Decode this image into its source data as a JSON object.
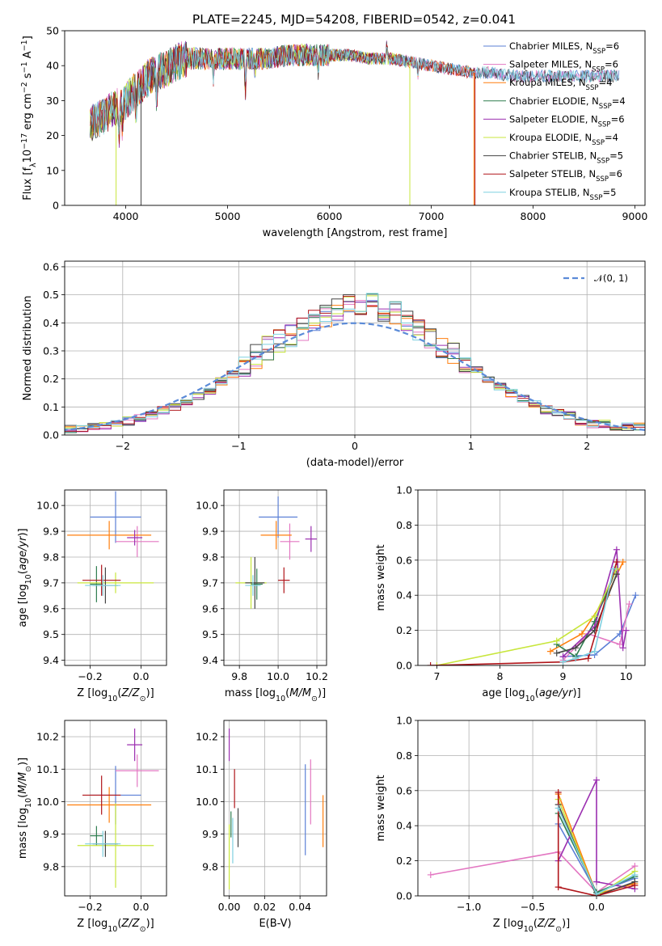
{
  "figure_title": "PLATE=2245, MJD=54208, FIBERID=0542, z=0.041",
  "colors": {
    "chab_miles": "#5b7fd6",
    "salp_miles": "#e377c2",
    "krou_miles": "#ff7f0e",
    "chab_elodie": "#2e7d4f",
    "salp_elodie": "#9b2fb0",
    "krou_elodie": "#c8e63c",
    "chab_stelib": "#444444",
    "salp_stelib": "#b0151a",
    "krou_stelib": "#7fd0e0",
    "normal": "#5b8bd8"
  },
  "chart_data": [
    {
      "id": "spectrum",
      "type": "line",
      "title": "PLATE=2245, MJD=54208, FIBERID=0542, z=0.041",
      "xlabel": "wavelength [Angstrom, rest frame]",
      "ylabel": "Flux [fλ10⁻¹⁷ erg cm⁻² s⁻¹ A⁻¹]",
      "xlim": [
        3400,
        9100
      ],
      "ylim": [
        0,
        50
      ],
      "xticks": [
        4000,
        5000,
        6000,
        7000,
        8000,
        9000
      ],
      "yticks": [
        0,
        10,
        20,
        30,
        40,
        50
      ],
      "legend_position": "top-right",
      "continuum": {
        "x": [
          3650,
          3700,
          3800,
          3900,
          4000,
          4100,
          4200,
          4300,
          4400,
          4500,
          4600,
          4800,
          5000,
          5200,
          5400,
          5600,
          5800,
          6000,
          6200,
          6400,
          6600,
          6800,
          7000,
          7200,
          7400,
          7600,
          7800,
          8000,
          8200,
          8400,
          8600,
          8800
        ],
        "y": [
          23,
          24,
          26,
          28,
          30,
          33,
          36,
          38,
          39,
          41,
          42,
          42,
          42,
          42,
          42,
          43,
          43,
          43,
          43,
          42,
          42,
          41,
          40,
          39,
          38,
          38,
          37,
          37,
          37,
          37,
          37,
          37
        ]
      },
      "series": [
        {
          "name": "Chabrier MILES, N_SSP=6",
          "key": "chab_miles",
          "xmax": 8850
        },
        {
          "name": "Salpeter MILES, N_SSP=6",
          "key": "salp_miles",
          "xmax": 8850
        },
        {
          "name": "Kroupa MILES, N_SSP=4",
          "key": "krou_miles",
          "xmax": 7420
        },
        {
          "name": "Chabrier ELODIE, N_SSP=4",
          "key": "chab_elodie",
          "xmax": 6790
        },
        {
          "name": "Salpeter ELODIE, N_SSP=6",
          "key": "salp_elodie",
          "xmax": 6790
        },
        {
          "name": "Kroupa ELODIE, N_SSP=4",
          "key": "krou_elodie",
          "xmax": 6790
        },
        {
          "name": "Chabrier STELIB, N_SSP=5",
          "key": "chab_stelib",
          "xmax": 8850
        },
        {
          "name": "Salpeter STELIB, N_SSP=6",
          "key": "salp_stelib",
          "xmax": 7420
        },
        {
          "name": "Kroupa STELIB, N_SSP=5",
          "key": "krou_stelib",
          "xmax": 8850
        }
      ],
      "dropouts": [
        {
          "x": 3905,
          "key": "krou_elodie"
        },
        {
          "x": 4150,
          "key": "chab_stelib"
        },
        {
          "x": 6790,
          "key": "krou_elodie"
        },
        {
          "x": 7420,
          "key": "krou_miles"
        },
        {
          "x": 7430,
          "key": "salp_stelib"
        }
      ]
    },
    {
      "id": "residuals",
      "type": "histogram",
      "xlabel": "(data-model)/error",
      "ylabel": "Normed distribution",
      "xlim": [
        -2.5,
        2.5
      ],
      "ylim": [
        0,
        0.62
      ],
      "xticks": [
        -2,
        -1,
        0,
        1,
        2
      ],
      "yticks": [
        0.0,
        0.1,
        0.2,
        0.3,
        0.4,
        0.5,
        0.6
      ],
      "grid": true,
      "legend": [
        {
          "label": "𝒩(0, 1)",
          "key": "normal",
          "style": "dashed"
        }
      ],
      "bin_width": 0.1,
      "base_values": [
        0.02,
        0.02,
        0.03,
        0.03,
        0.04,
        0.05,
        0.06,
        0.07,
        0.09,
        0.1,
        0.12,
        0.14,
        0.16,
        0.19,
        0.22,
        0.25,
        0.28,
        0.31,
        0.34,
        0.36,
        0.38,
        0.41,
        0.43,
        0.45,
        0.46,
        0.47,
        0.46,
        0.45,
        0.43,
        0.41,
        0.38,
        0.35,
        0.32,
        0.29,
        0.26,
        0.23,
        0.2,
        0.17,
        0.15,
        0.13,
        0.11,
        0.09,
        0.08,
        0.07,
        0.05,
        0.04,
        0.04,
        0.03,
        0.03,
        0.03
      ]
    },
    {
      "id": "age_vs_Z",
      "type": "errorbar",
      "xlabel": "Z [log10(Z/Z⊙)]",
      "ylabel": "age  [log10(age/yr)]",
      "xlim": [
        -0.3,
        0.1
      ],
      "ylim": [
        9.38,
        10.06
      ],
      "xticks": [
        -0.2,
        0.0
      ],
      "yticks": [
        9.4,
        9.5,
        9.6,
        9.7,
        9.8,
        9.9,
        10.0
      ],
      "points": [
        {
          "key": "chab_miles",
          "x": -0.1,
          "y": 9.955,
          "xerr": 0.1,
          "yerr": 0.1
        },
        {
          "key": "salp_miles",
          "x": -0.015,
          "y": 9.86,
          "xerr": 0.085,
          "yerr": 0.06
        },
        {
          "key": "krou_miles",
          "x": -0.125,
          "y": 9.885,
          "xerr": 0.165,
          "yerr": 0.055
        },
        {
          "key": "chab_elodie",
          "x": -0.175,
          "y": 9.695,
          "xerr": 0.025,
          "yerr": 0.07
        },
        {
          "key": "salp_elodie",
          "x": -0.025,
          "y": 9.875,
          "xerr": 0.03,
          "yerr": 0.03
        },
        {
          "key": "krou_elodie",
          "x": -0.1,
          "y": 9.7,
          "xerr": 0.15,
          "yerr": 0.04
        },
        {
          "key": "chab_stelib",
          "x": -0.14,
          "y": 9.69,
          "xerr": 0.05,
          "yerr": 0.07
        },
        {
          "key": "salp_stelib",
          "x": -0.155,
          "y": 9.71,
          "xerr": 0.075,
          "yerr": 0.06
        },
        {
          "key": "krou_stelib",
          "x": -0.15,
          "y": 9.69,
          "xerr": 0.07,
          "yerr": 0.04
        }
      ]
    },
    {
      "id": "age_vs_mass",
      "type": "errorbar",
      "xlabel": "mass [log10(M/M⊙)]",
      "ylabel": "",
      "xlim": [
        9.72,
        10.25
      ],
      "ylim": [
        9.38,
        10.06
      ],
      "xticks": [
        9.8,
        10.0,
        10.2
      ],
      "yticks": [
        9.4,
        9.5,
        9.6,
        9.7,
        9.8,
        9.9,
        10.0
      ],
      "points": [
        {
          "key": "chab_miles",
          "x": 10.0,
          "y": 9.955,
          "xerr": 0.1,
          "yerr": 0.08
        },
        {
          "key": "salp_miles",
          "x": 10.06,
          "y": 9.86,
          "xerr": 0.05,
          "yerr": 0.07
        },
        {
          "key": "krou_miles",
          "x": 9.99,
          "y": 9.885,
          "xerr": 0.08,
          "yerr": 0.055
        },
        {
          "key": "chab_elodie",
          "x": 9.89,
          "y": 9.695,
          "xerr": 0.03,
          "yerr": 0.06
        },
        {
          "key": "salp_elodie",
          "x": 10.17,
          "y": 9.87,
          "xerr": 0.03,
          "yerr": 0.05
        },
        {
          "key": "krou_elodie",
          "x": 9.86,
          "y": 9.7,
          "xerr": 0.08,
          "yerr": 0.1
        },
        {
          "key": "chab_stelib",
          "x": 9.88,
          "y": 9.7,
          "xerr": 0.05,
          "yerr": 0.1
        },
        {
          "key": "salp_stelib",
          "x": 10.03,
          "y": 9.71,
          "xerr": 0.03,
          "yerr": 0.05
        },
        {
          "key": "krou_stelib",
          "x": 9.87,
          "y": 9.69,
          "xerr": 0.04,
          "yerr": 0.04
        }
      ]
    },
    {
      "id": "weight_vs_age",
      "type": "line",
      "xlabel": "age  [log10(age/yr)]",
      "ylabel": "mass weight",
      "xlim": [
        6.7,
        10.3
      ],
      "ylim": [
        0,
        1.0
      ],
      "xticks": [
        7,
        8,
        9,
        10
      ],
      "yticks": [
        0.0,
        0.2,
        0.4,
        0.6,
        0.8,
        1.0
      ],
      "series": [
        {
          "key": "chab_miles",
          "x": [
            9.0,
            9.5,
            9.9,
            10.15
          ],
          "y": [
            0.05,
            0.06,
            0.18,
            0.4
          ]
        },
        {
          "key": "salp_miles",
          "x": [
            9.0,
            9.4,
            9.9,
            10.05
          ],
          "y": [
            0.03,
            0.18,
            0.12,
            0.35
          ]
        },
        {
          "key": "krou_miles",
          "x": [
            8.8,
            9.3,
            9.7,
            9.95
          ],
          "y": [
            0.08,
            0.18,
            0.4,
            0.59
          ]
        },
        {
          "key": "chab_elodie",
          "x": [
            8.9,
            9.2,
            9.5,
            9.85
          ],
          "y": [
            0.12,
            0.05,
            0.25,
            0.55
          ]
        },
        {
          "key": "salp_elodie",
          "x": [
            9.0,
            9.5,
            9.85,
            9.95,
            10.0
          ],
          "y": [
            0.05,
            0.22,
            0.66,
            0.1,
            0.2
          ]
        },
        {
          "key": "krou_elodie",
          "x": [
            7.0,
            8.9,
            9.5,
            9.85
          ],
          "y": [
            0.0,
            0.14,
            0.28,
            0.55
          ]
        },
        {
          "key": "chab_stelib",
          "x": [
            8.9,
            9.2,
            9.5,
            9.85
          ],
          "y": [
            0.07,
            0.1,
            0.2,
            0.52
          ]
        },
        {
          "key": "salp_stelib",
          "x": [
            6.9,
            9.0,
            9.4,
            9.85
          ],
          "y": [
            0.0,
            0.02,
            0.04,
            0.59
          ]
        },
        {
          "key": "krou_stelib",
          "x": [
            9.0,
            9.2,
            9.5,
            9.8
          ],
          "y": [
            0.02,
            0.04,
            0.08,
            0.55
          ]
        }
      ]
    },
    {
      "id": "mass_vs_Z",
      "type": "errorbar",
      "xlabel": "Z [log10(Z/Z⊙)]",
      "ylabel": "mass [log10(M/M⊙)]",
      "xlim": [
        -0.3,
        0.1
      ],
      "ylim": [
        9.71,
        10.25
      ],
      "xticks": [
        -0.2,
        0.0
      ],
      "yticks": [
        9.8,
        9.9,
        10.0,
        10.1,
        10.2
      ],
      "points": [
        {
          "key": "chab_miles",
          "x": -0.1,
          "y": 10.02,
          "xerr": 0.1,
          "yerr": 0.09
        },
        {
          "key": "salp_miles",
          "x": -0.015,
          "y": 10.095,
          "xerr": 0.085,
          "yerr": 0.05
        },
        {
          "key": "krou_miles",
          "x": -0.125,
          "y": 9.99,
          "xerr": 0.165,
          "yerr": 0.055
        },
        {
          "key": "chab_elodie",
          "x": -0.175,
          "y": 9.895,
          "xerr": 0.025,
          "yerr": 0.03
        },
        {
          "key": "salp_elodie",
          "x": -0.025,
          "y": 10.175,
          "xerr": 0.03,
          "yerr": 0.05
        },
        {
          "key": "krou_elodie",
          "x": -0.1,
          "y": 9.865,
          "xerr": 0.15,
          "yerr": 0.13
        },
        {
          "key": "chab_stelib",
          "x": -0.14,
          "y": 9.87,
          "xerr": 0.05,
          "yerr": 0.04
        },
        {
          "key": "salp_stelib",
          "x": -0.155,
          "y": 10.02,
          "xerr": 0.075,
          "yerr": 0.06
        },
        {
          "key": "krou_stelib",
          "x": -0.15,
          "y": 9.87,
          "xerr": 0.07,
          "yerr": 0.04
        }
      ]
    },
    {
      "id": "mass_vs_ebv",
      "type": "errorbar",
      "xlabel": "E(B-V)",
      "ylabel": "",
      "xlim": [
        -0.003,
        0.055
      ],
      "ylim": [
        9.71,
        10.25
      ],
      "xticks": [
        0.0,
        0.02,
        0.04
      ],
      "xtick_labels": [
        "0.00",
        "0.02",
        "0.04"
      ],
      "yticks": [
        9.8,
        9.9,
        10.0,
        10.1,
        10.2
      ],
      "points": [
        {
          "key": "chab_miles",
          "x": 0.043,
          "y": 9.975,
          "xerr": 0,
          "yerr": 0.14
        },
        {
          "key": "salp_miles",
          "x": 0.046,
          "y": 10.03,
          "xerr": 0,
          "yerr": 0.1
        },
        {
          "key": "krou_miles",
          "x": 0.053,
          "y": 9.94,
          "xerr": 0,
          "yerr": 0.08
        },
        {
          "key": "chab_elodie",
          "x": 0.001,
          "y": 9.93,
          "xerr": 0,
          "yerr": 0.04
        },
        {
          "key": "salp_elodie",
          "x": 0.0,
          "y": 10.175,
          "xerr": 0,
          "yerr": 0.05
        },
        {
          "key": "krou_elodie",
          "x": 0.0,
          "y": 9.83,
          "xerr": 0,
          "yerr": 0.1
        },
        {
          "key": "chab_stelib",
          "x": 0.005,
          "y": 9.92,
          "xerr": 0,
          "yerr": 0.06
        },
        {
          "key": "salp_stelib",
          "x": 0.003,
          "y": 10.04,
          "xerr": 0,
          "yerr": 0.06
        },
        {
          "key": "krou_stelib",
          "x": 0.002,
          "y": 9.88,
          "xerr": 0,
          "yerr": 0.07
        }
      ]
    },
    {
      "id": "weight_vs_Z",
      "type": "line",
      "xlabel": "Z [log10(Z/Z⊙)]",
      "ylabel": "mass weight",
      "xlim": [
        -1.4,
        0.38
      ],
      "ylim": [
        0,
        1.0
      ],
      "xticks": [
        -1.0,
        -0.5,
        0.0
      ],
      "yticks": [
        0.0,
        0.2,
        0.4,
        0.6,
        0.8,
        1.0
      ],
      "series": [
        {
          "key": "chab_miles",
          "x": [
            -0.3,
            0.0,
            0.3
          ],
          "y": [
            0.41,
            0.02,
            0.1
          ]
        },
        {
          "key": "salp_miles",
          "x": [
            -1.3,
            -0.3,
            0.0,
            0.3
          ],
          "y": [
            0.12,
            0.25,
            0.02,
            0.17
          ]
        },
        {
          "key": "krou_miles",
          "x": [
            -0.3,
            0.0,
            0.3
          ],
          "y": [
            0.58,
            0.01,
            0.07
          ]
        },
        {
          "key": "chab_elodie",
          "x": [
            -0.3,
            0.0,
            0.3
          ],
          "y": [
            0.47,
            0.02,
            0.11
          ]
        },
        {
          "key": "salp_elodie",
          "x": [
            -0.3,
            0.0,
            0.0,
            0.3
          ],
          "y": [
            0.2,
            0.66,
            0.08,
            0.04
          ]
        },
        {
          "key": "krou_elodie",
          "x": [
            -0.3,
            0.0,
            0.3
          ],
          "y": [
            0.55,
            0.0,
            0.14
          ]
        },
        {
          "key": "chab_stelib",
          "x": [
            -0.3,
            0.0,
            0.3
          ],
          "y": [
            0.52,
            0.0,
            0.08
          ]
        },
        {
          "key": "salp_stelib",
          "x": [
            -0.3,
            -0.3,
            0.0,
            0.3
          ],
          "y": [
            0.59,
            0.05,
            0.0,
            0.06
          ]
        },
        {
          "key": "krou_stelib",
          "x": [
            -0.3,
            0.0,
            0.3
          ],
          "y": [
            0.5,
            0.01,
            0.12
          ]
        }
      ]
    }
  ]
}
